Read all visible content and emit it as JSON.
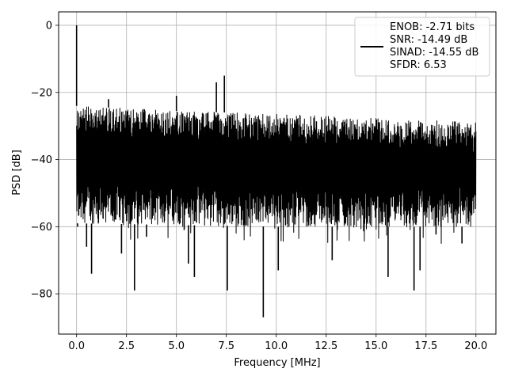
{
  "chart_data": {
    "type": "line",
    "title": "",
    "xlabel": "Frequency [MHz]",
    "ylabel": "PSD [dB]",
    "xlim": [
      -0.9,
      21.0
    ],
    "ylim": [
      -92,
      4
    ],
    "x_ticks": [
      0.0,
      2.5,
      5.0,
      7.5,
      10.0,
      12.5,
      15.0,
      17.5,
      20.0
    ],
    "x_tick_labels": [
      "0.0",
      "2.5",
      "5.0",
      "7.5",
      "10.0",
      "12.5",
      "15.0",
      "17.5",
      "20.0"
    ],
    "y_ticks": [
      0,
      -20,
      -40,
      -60,
      -80
    ],
    "y_tick_labels": [
      "0",
      "−20",
      "−40",
      "−60",
      "−80"
    ],
    "grid": true,
    "legend_position": "top-right",
    "series": [
      {
        "legend_lines": [
          "ENOB: -2.71 bits",
          "SNR: -14.49 dB",
          "SINAD: -14.55 dB",
          "SFDR: 6.53"
        ],
        "color": "#000000",
        "band_upper": [
          [
            0.0,
            -24
          ],
          [
            5.0,
            -25.5
          ],
          [
            10.0,
            -26.5
          ],
          [
            15.0,
            -27.5
          ],
          [
            20.0,
            -29
          ]
        ],
        "band_lower": [
          [
            0.0,
            -59
          ],
          [
            5.0,
            -59.5
          ],
          [
            10.0,
            -60
          ],
          [
            15.0,
            -60
          ],
          [
            20.0,
            -60
          ]
        ],
        "features": [
          {
            "x": 0.0,
            "y": 0
          },
          {
            "x": 0.05,
            "y": -60
          },
          {
            "x": 0.5,
            "y": -66
          },
          {
            "x": 0.75,
            "y": -74
          },
          {
            "x": 1.6,
            "y": -22
          },
          {
            "x": 2.25,
            "y": -68
          },
          {
            "x": 2.9,
            "y": -79
          },
          {
            "x": 3.5,
            "y": -63
          },
          {
            "x": 5.0,
            "y": -21
          },
          {
            "x": 5.6,
            "y": -71
          },
          {
            "x": 5.9,
            "y": -75
          },
          {
            "x": 7.0,
            "y": -17
          },
          {
            "x": 7.4,
            "y": -15
          },
          {
            "x": 7.55,
            "y": -79
          },
          {
            "x": 9.35,
            "y": -87
          },
          {
            "x": 10.1,
            "y": -73
          },
          {
            "x": 12.8,
            "y": -70
          },
          {
            "x": 15.6,
            "y": -75
          },
          {
            "x": 16.9,
            "y": -79
          },
          {
            "x": 17.2,
            "y": -73
          },
          {
            "x": 19.3,
            "y": -65
          }
        ]
      }
    ]
  }
}
